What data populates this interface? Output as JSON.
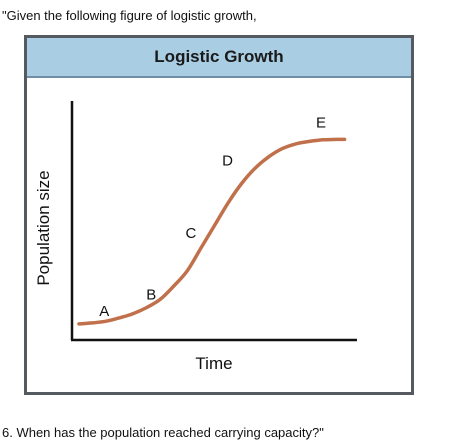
{
  "prompt": {
    "intro": "\"Given the following figure of logistic growth,",
    "question": "6. When has the population reached carrying capacity?\""
  },
  "chart_data": {
    "type": "line",
    "title": "Logistic Growth",
    "xlabel": "Time",
    "ylabel": "Population size",
    "xlim": [
      0,
      100
    ],
    "ylim": [
      0,
      100
    ],
    "grid": false,
    "curve_color": "#c0704a",
    "series": [
      {
        "x": [
          0,
          5,
          10,
          15,
          20,
          25,
          30,
          35,
          40,
          45,
          50,
          55,
          60,
          65,
          70,
          75,
          80,
          85,
          90,
          95,
          98
        ],
        "values": [
          2,
          2.5,
          3.3,
          5,
          7,
          10,
          14,
          20.5,
          28,
          39,
          50,
          61,
          70.5,
          78,
          83.5,
          87.5,
          89.8,
          91,
          91.8,
          92,
          92
        ]
      }
    ],
    "annotations": [
      {
        "text": "A",
        "x": 6,
        "y": 2
      },
      {
        "text": "B",
        "x": 23,
        "y": 8
      },
      {
        "text": "C",
        "x": 45,
        "y": 39
      },
      {
        "text": "D",
        "x": 60,
        "y": 70.5
      },
      {
        "text": "E",
        "x": 93,
        "y": 92
      }
    ]
  }
}
